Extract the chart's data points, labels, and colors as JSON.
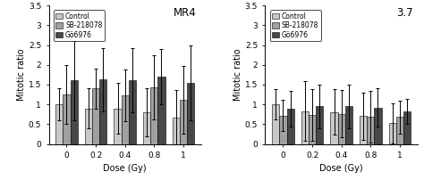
{
  "doses": [
    0,
    0.2,
    0.4,
    0.8,
    1
  ],
  "panel1": {
    "label": "MR4",
    "control_vals": [
      1.0,
      0.9,
      0.9,
      0.8,
      0.67
    ],
    "sb_vals": [
      1.25,
      1.4,
      1.22,
      1.43,
      1.12
    ],
    "go_vals": [
      1.6,
      1.63,
      1.61,
      1.7,
      1.55
    ],
    "control_err": [
      0.4,
      0.5,
      0.65,
      0.6,
      0.7
    ],
    "sb_err": [
      0.75,
      0.5,
      0.65,
      0.8,
      0.85
    ],
    "go_err": [
      1.0,
      0.8,
      0.8,
      0.7,
      0.95
    ]
  },
  "panel2": {
    "label": "3.7",
    "control_vals": [
      1.0,
      0.83,
      0.81,
      0.7,
      0.52
    ],
    "sb_vals": [
      0.72,
      0.73,
      0.76,
      0.68,
      0.68
    ],
    "go_vals": [
      0.88,
      0.95,
      0.95,
      0.92,
      0.82
    ],
    "control_err": [
      0.38,
      0.75,
      0.58,
      0.6,
      0.5
    ],
    "sb_err": [
      0.4,
      0.65,
      0.6,
      0.65,
      0.42
    ],
    "go_err": [
      0.45,
      0.55,
      0.55,
      0.48,
      0.32
    ]
  },
  "colors": {
    "control": "#c8c8c8",
    "sb": "#a0a0a0",
    "go": "#484848"
  },
  "ylim": [
    0,
    3.5
  ],
  "yticks": [
    0,
    0.5,
    1,
    1.5,
    2,
    2.5,
    3,
    3.5
  ],
  "ytick_labels": [
    "0",
    "0.5",
    "1",
    "1.5",
    "2",
    "2.5",
    "3",
    "3.5"
  ],
  "ylabel": "Mitotic ratio",
  "xlabel": "Dose (Gy)",
  "legend_labels": [
    "Control",
    "SB-218078",
    "Gö6976"
  ],
  "bar_width": 0.25
}
